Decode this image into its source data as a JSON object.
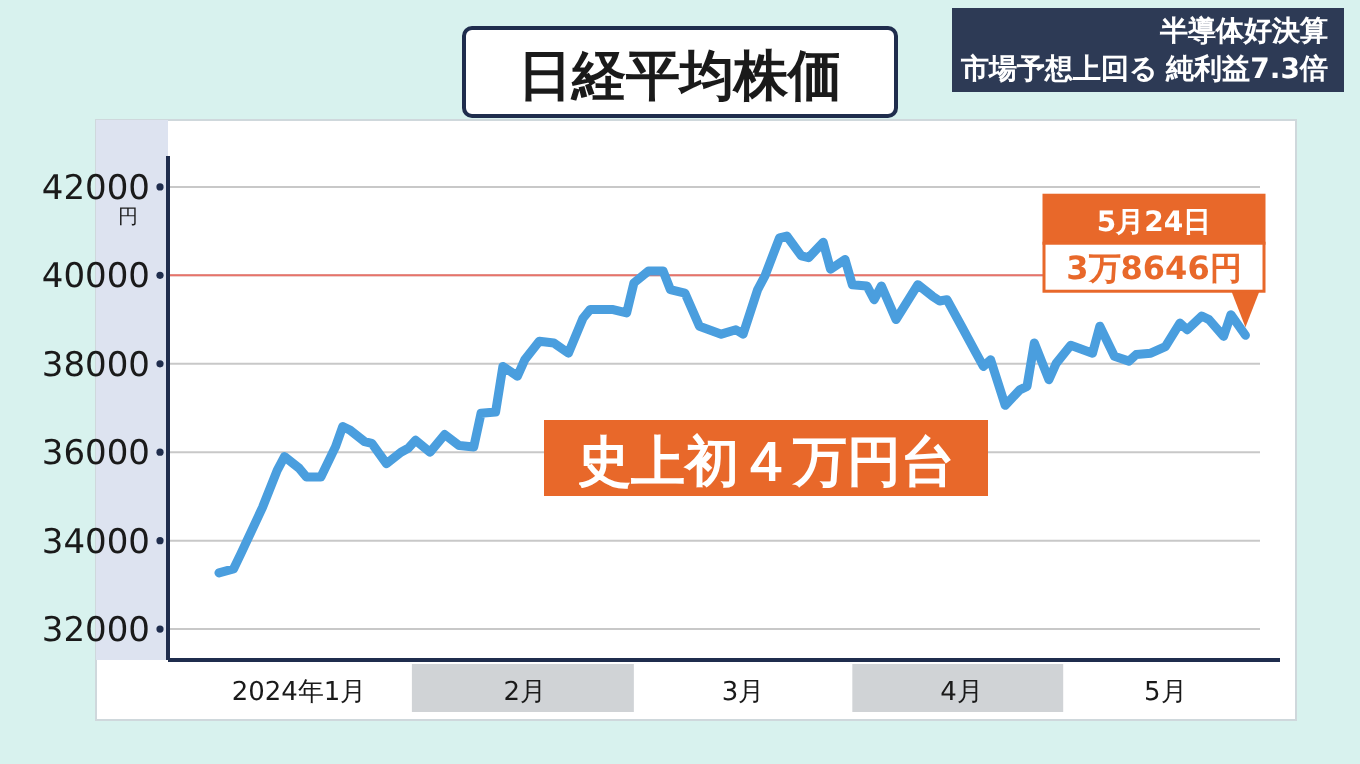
{
  "chart_data": {
    "type": "line",
    "title": "日経平均株価",
    "subtitle": "半導体好決算",
    "ylabel": "円",
    "x": [
      "2024-01-04",
      "2024-01-06",
      "2024-01-07",
      "2024-01-10",
      "2024-01-12",
      "2024-01-13",
      "2024-01-15",
      "2024-01-16",
      "2024-01-18",
      "2024-01-20",
      "2024-01-21",
      "2024-01-22",
      "2024-01-24",
      "2024-01-25",
      "2024-01-27",
      "2024-01-29",
      "2024-01-30",
      "2024-01-31",
      "2024-02-02",
      "2024-02-04",
      "2024-02-06",
      "2024-02-08",
      "2024-02-09",
      "2024-02-11",
      "2024-02-12",
      "2024-02-14",
      "2024-02-15",
      "2024-02-17",
      "2024-02-19",
      "2024-02-21",
      "2024-02-23",
      "2024-02-24",
      "2024-02-27",
      "2024-02-29",
      "2024-03-01",
      "2024-03-03",
      "2024-03-05",
      "2024-03-06",
      "2024-03-08",
      "2024-03-10",
      "2024-03-13",
      "2024-03-15",
      "2024-03-16",
      "2024-03-18",
      "2024-03-19",
      "2024-03-21",
      "2024-03-22",
      "2024-03-24",
      "2024-03-25",
      "2024-03-27",
      "2024-03-28",
      "2024-03-30",
      "2024-03-31",
      "2024-04-02",
      "2024-04-03",
      "2024-04-04",
      "2024-04-06",
      "2024-04-09",
      "2024-04-11",
      "2024-04-12",
      "2024-04-13",
      "2024-04-15",
      "2024-04-17",
      "2024-04-18",
      "2024-04-19",
      "2024-04-21",
      "2024-04-23",
      "2024-04-24",
      "2024-04-25",
      "2024-04-27",
      "2024-04-28",
      "2024-04-30",
      "2024-05-03",
      "2024-05-04",
      "2024-05-06",
      "2024-05-08",
      "2024-05-09",
      "2024-05-11",
      "2024-05-13",
      "2024-05-15",
      "2024-05-16",
      "2024-05-18",
      "2024-05-19",
      "2024-05-21",
      "2024-05-22",
      "2024-05-24"
    ],
    "series": [
      {
        "color": "#4a9ede",
        "values": [
          33270,
          33360,
          33700,
          34760,
          35590,
          35900,
          35640,
          35440,
          35440,
          36120,
          36580,
          36500,
          36240,
          36200,
          35740,
          36000,
          36090,
          36270,
          36000,
          36400,
          36150,
          36120,
          36880,
          36910,
          37940,
          37720,
          38090,
          38510,
          38470,
          38240,
          39030,
          39230,
          39230,
          39150,
          39830,
          40100,
          40100,
          39680,
          39600,
          38850,
          38670,
          38770,
          38670,
          39680,
          39990,
          40850,
          40890,
          40440,
          40400,
          40750,
          40140,
          40360,
          39790,
          39760,
          39450,
          39760,
          39000,
          39790,
          39530,
          39420,
          39450,
          38850,
          38240,
          37940,
          38090,
          37060,
          37410,
          37490,
          38470,
          37640,
          38010,
          38420,
          38240,
          38850,
          38170,
          38060,
          38210,
          38240,
          38390,
          38920,
          38770,
          39080,
          39000,
          38620,
          39110,
          38646
        ]
      }
    ],
    "xlim": [
      "2023-12-28",
      "2024-05-26"
    ],
    "xticks": [
      {
        "value": "2024-01-15",
        "label": "2024年1月"
      },
      {
        "value": "2024-02-15",
        "label": "2月"
      },
      {
        "value": "2024-03-16",
        "label": "3月"
      },
      {
        "value": "2024-04-15",
        "label": "4月"
      },
      {
        "value": "2024-05-13",
        "label": "5月"
      }
    ],
    "ylim": [
      31300,
      42700
    ],
    "yticks": [
      32000,
      34000,
      36000,
      38000,
      40000,
      42000
    ],
    "grid": "y",
    "marker": "none",
    "line_style": "solid",
    "ref_lines": [
      {
        "axis": "y",
        "value": 40000,
        "color": "#e8736a"
      }
    ],
    "annotations": [
      "市場予想上回る 純利益7.3倍",
      "史上初４万円台",
      "5月24日",
      "3万8646円"
    ]
  }
}
